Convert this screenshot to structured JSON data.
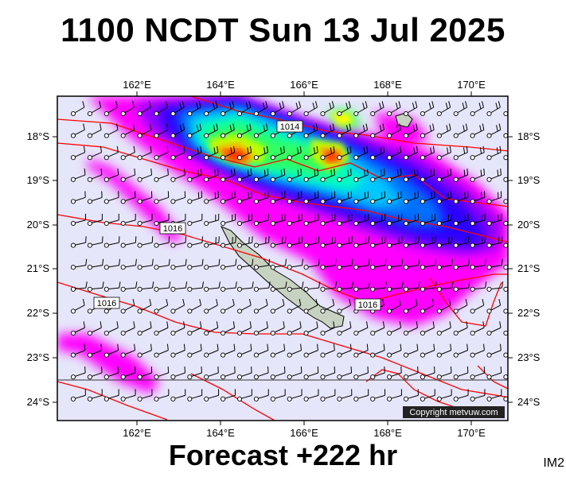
{
  "title": "1100 NCDT Sun 13 Jul 2025",
  "footer": "Forecast +222 hr",
  "corner_label": "IM2",
  "copyright": "Copyright metvuw.com",
  "longitude_labels": [
    "162°E",
    "164°E",
    "166°E",
    "168°E",
    "170°E"
  ],
  "latitude_labels": [
    "18°S",
    "19°S",
    "20°S",
    "21°S",
    "22°S",
    "23°S",
    "24°S"
  ],
  "isobar_labels": [
    "1014",
    "1016",
    "1016",
    "1016"
  ],
  "colors": {
    "ocean_background": "#e6e6fa",
    "isobar": "#ff0000",
    "land": "#c8d2c0",
    "precip_scale": [
      "#ff00ff",
      "#b400ff",
      "#5000ff",
      "#0000e0",
      "#0060ff",
      "#00c0ff",
      "#00ffd0",
      "#00ff60",
      "#c0ff00",
      "#ffff00",
      "#ff8000",
      "#ff2000"
    ]
  }
}
